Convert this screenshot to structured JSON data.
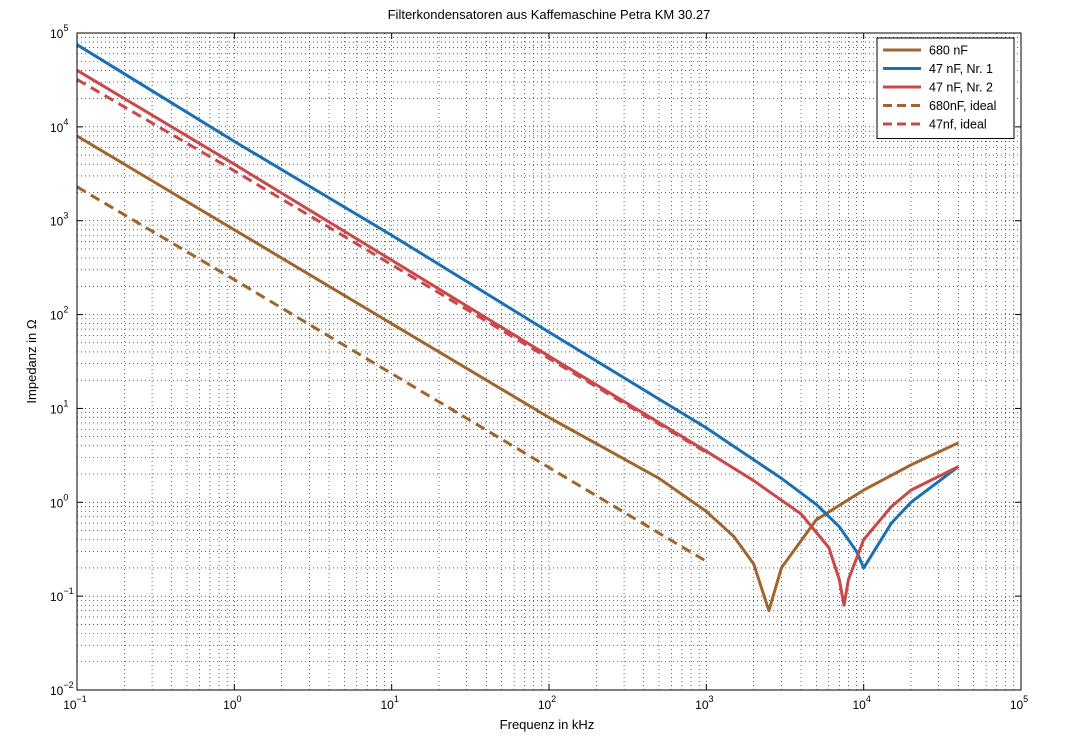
{
  "chart_data": {
    "type": "line",
    "title": "Filterkondensatoren aus Kaffemaschine Petra KM 30.27",
    "xlabel": "Frequenz in kHz",
    "ylabel": "Impedanz in Ω",
    "x_scale": "log",
    "y_scale": "log",
    "xlim": [
      0.1,
      100000
    ],
    "ylim": [
      0.01,
      100000
    ],
    "x_ticks": [
      {
        "value": 0.1,
        "base": "10",
        "exp": "−1"
      },
      {
        "value": 1,
        "base": "10",
        "exp": "0"
      },
      {
        "value": 10,
        "base": "10",
        "exp": "1"
      },
      {
        "value": 100,
        "base": "10",
        "exp": "2"
      },
      {
        "value": 1000,
        "base": "10",
        "exp": "3"
      },
      {
        "value": 10000,
        "base": "10",
        "exp": "4"
      },
      {
        "value": 100000,
        "base": "10",
        "exp": "5"
      }
    ],
    "y_ticks": [
      {
        "value": 0.01,
        "base": "10",
        "exp": "−2"
      },
      {
        "value": 0.1,
        "base": "10",
        "exp": "−1"
      },
      {
        "value": 1,
        "base": "10",
        "exp": "0"
      },
      {
        "value": 10,
        "base": "10",
        "exp": "1"
      },
      {
        "value": 100,
        "base": "10",
        "exp": "2"
      },
      {
        "value": 1000,
        "base": "10",
        "exp": "3"
      },
      {
        "value": 10000,
        "base": "10",
        "exp": "4"
      },
      {
        "value": 100000,
        "base": "10",
        "exp": "5"
      }
    ],
    "grid": true,
    "legend_position": "top-right",
    "series": [
      {
        "name": "680 nF",
        "color": "#a0652d",
        "dash": "solid",
        "x": [
          0.1,
          1,
          10,
          100,
          500,
          1000,
          1500,
          2000,
          2500,
          3000,
          5000,
          10000,
          20000,
          40000
        ],
        "y": [
          8000,
          800,
          80,
          8,
          1.8,
          0.8,
          0.43,
          0.22,
          0.07,
          0.2,
          0.65,
          1.35,
          2.5,
          4.3
        ]
      },
      {
        "name": "47 nF, Nr. 1",
        "color": "#1a6fb5",
        "dash": "solid",
        "x": [
          0.1,
          1,
          10,
          100,
          1000,
          3000,
          5000,
          7000,
          9000,
          10000,
          15000,
          20000,
          40000
        ],
        "y": [
          75000,
          7000,
          700,
          65,
          6.2,
          1.8,
          0.95,
          0.55,
          0.3,
          0.2,
          0.6,
          1.0,
          2.4
        ]
      },
      {
        "name": "47 nF, Nr. 2",
        "color": "#c9484a",
        "dash": "solid",
        "x": [
          0.1,
          1,
          10,
          100,
          1000,
          2000,
          4000,
          6000,
          7000,
          7500,
          8000,
          10000,
          15000,
          20000,
          40000
        ],
        "y": [
          40000,
          4000,
          380,
          36,
          3.5,
          1.7,
          0.75,
          0.33,
          0.15,
          0.08,
          0.15,
          0.4,
          0.9,
          1.35,
          2.4
        ]
      },
      {
        "name": "680nF, ideal",
        "color": "#a0652d",
        "dash": "dashed",
        "x": [
          0.1,
          1,
          10,
          100,
          1000
        ],
        "y": [
          2300,
          235,
          23.5,
          2.35,
          0.235
        ]
      },
      {
        "name": "47nf, ideal",
        "color": "#c9484a",
        "dash": "dashed",
        "x": [
          0.1,
          1,
          10,
          100,
          1000
        ],
        "y": [
          32000,
          3400,
          340,
          34,
          3.4
        ]
      }
    ]
  }
}
